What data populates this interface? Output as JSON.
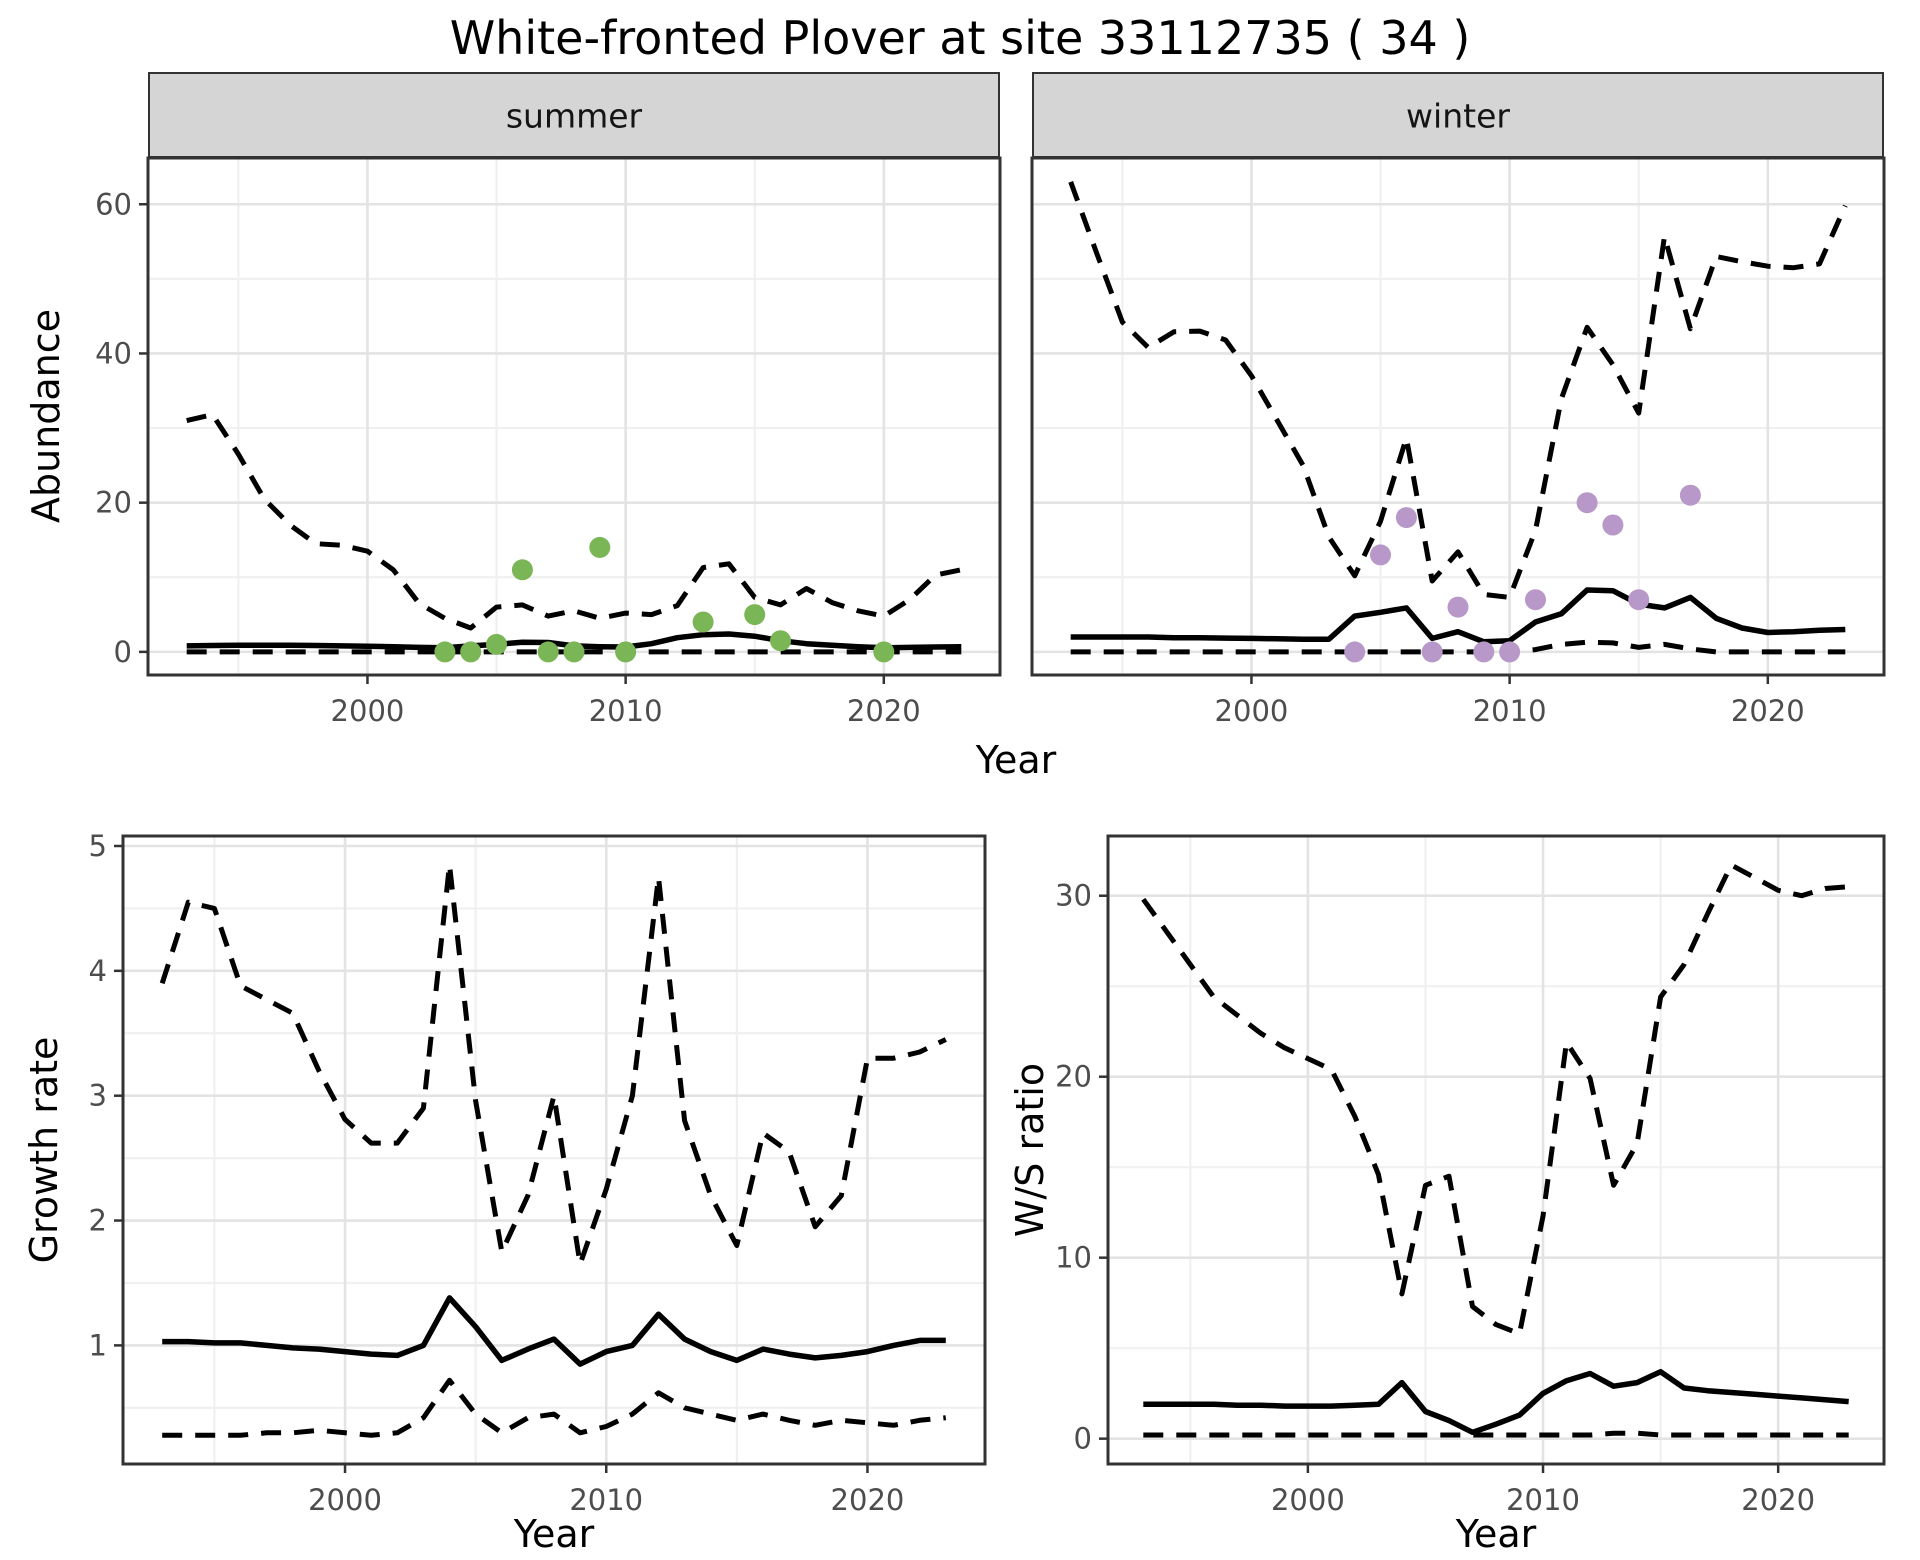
{
  "title": "White-fronted Plover at site 33112735 ( 34 )",
  "colors": {
    "summer_point": "#7ab556",
    "winter_point": "#b898c8",
    "line": "#000000",
    "panel_border": "#333333",
    "grid_major": "#e3e3e3",
    "grid_minor": "#f0f0f0",
    "strip_bg": "#d5d5d5",
    "tick_label": "#4d4d4d"
  },
  "years": [
    1993,
    1994,
    1995,
    1996,
    1997,
    1998,
    1999,
    2000,
    2001,
    2002,
    2003,
    2004,
    2005,
    2006,
    2007,
    2008,
    2009,
    2010,
    2011,
    2012,
    2013,
    2014,
    2015,
    2016,
    2017,
    2018,
    2019,
    2020,
    2021,
    2022,
    2023
  ],
  "chart_data": [
    {
      "type": "line",
      "facet": "summer",
      "ylabel": "Abundance",
      "xlabel": "Year",
      "xlim": [
        1991.5,
        2024.5
      ],
      "ylim": [
        -3.1,
        66.2
      ],
      "xticks": [
        2000,
        2010,
        2020
      ],
      "xminor": [
        1995,
        2005,
        2015
      ],
      "yticks": [
        0,
        20,
        40,
        60
      ],
      "yminor": [
        10,
        30,
        50
      ],
      "series": [
        {
          "name": "upper_ci_dashed",
          "values": [
            31,
            31.8,
            26.5,
            20.5,
            17,
            14.5,
            14.3,
            13.5,
            11,
            6.5,
            4.5,
            3.2,
            6,
            6.3,
            4.8,
            5.5,
            4.5,
            5.2,
            5,
            6.2,
            11.3,
            11.8,
            7.3,
            6.3,
            8.5,
            6.6,
            5.5,
            4.8,
            7,
            10.3,
            11
          ]
        },
        {
          "name": "median_solid",
          "values": [
            0.8,
            0.85,
            0.9,
            0.9,
            0.9,
            0.85,
            0.8,
            0.75,
            0.7,
            0.6,
            0.55,
            0.8,
            1.0,
            1.3,
            1.25,
            0.8,
            0.7,
            0.65,
            1.1,
            1.9,
            2.3,
            2.4,
            2.1,
            1.5,
            1.1,
            0.9,
            0.7,
            0.55,
            0.6,
            0.65,
            0.7
          ]
        },
        {
          "name": "lower_ci_dashed",
          "values": [
            0,
            0,
            0,
            0,
            0,
            0,
            0,
            0,
            0,
            0,
            0,
            0,
            0,
            0,
            0,
            0,
            0,
            0,
            0,
            0,
            0,
            0,
            0,
            0,
            0,
            0,
            0,
            0,
            0,
            0,
            0
          ]
        }
      ],
      "points": [
        [
          2003,
          0
        ],
        [
          2004,
          0
        ],
        [
          2005,
          1
        ],
        [
          2006,
          11
        ],
        [
          2007,
          0
        ],
        [
          2008,
          0
        ],
        [
          2009,
          14
        ],
        [
          2010,
          0
        ],
        [
          2013,
          4
        ],
        [
          2015,
          5
        ],
        [
          2016,
          1.5
        ],
        [
          2020,
          0
        ]
      ]
    },
    {
      "type": "line",
      "facet": "winter",
      "ylabel": "",
      "xlabel": "Year",
      "xlim": [
        1991.5,
        2024.5
      ],
      "ylim": [
        -3.1,
        66.2
      ],
      "xticks": [
        2000,
        2010,
        2020
      ],
      "xminor": [
        1995,
        2005,
        2015
      ],
      "yticks": [
        0,
        20,
        40,
        60
      ],
      "yminor": [
        10,
        30,
        50
      ],
      "series": [
        {
          "name": "upper_ci_dashed",
          "values": [
            63,
            53.5,
            44.2,
            40.8,
            42.9,
            43,
            41.8,
            37,
            31,
            25,
            15.4,
            10.2,
            17.5,
            28.7,
            9.5,
            13.4,
            7.7,
            7.3,
            16.3,
            33.9,
            43.5,
            38.5,
            32,
            55.7,
            43.3,
            53,
            52.3,
            51.7,
            51.5,
            52,
            59.8
          ]
        },
        {
          "name": "median_solid",
          "values": [
            2,
            2,
            2,
            2,
            1.9,
            1.9,
            1.85,
            1.8,
            1.75,
            1.7,
            1.7,
            4.8,
            5.3,
            5.9,
            1.8,
            2.7,
            1.35,
            1.5,
            4,
            5.1,
            8.3,
            8.2,
            6.4,
            5.9,
            7.3,
            4.5,
            3.2,
            2.6,
            2.7,
            2.9,
            3
          ]
        },
        {
          "name": "lower_ci_dashed",
          "values": [
            0,
            0,
            0,
            0,
            0,
            0,
            0,
            0,
            0,
            0,
            0,
            0,
            0,
            0,
            0,
            0,
            0,
            0,
            0.3,
            1,
            1.3,
            1.2,
            0.6,
            1,
            0.4,
            0,
            0,
            0,
            0,
            0,
            0
          ]
        }
      ],
      "points": [
        [
          2004,
          0
        ],
        [
          2005,
          13
        ],
        [
          2006,
          18
        ],
        [
          2007,
          0
        ],
        [
          2008,
          6
        ],
        [
          2009,
          0
        ],
        [
          2010,
          0
        ],
        [
          2011,
          7
        ],
        [
          2013,
          20
        ],
        [
          2014,
          17
        ],
        [
          2015,
          7
        ],
        [
          2017,
          21
        ]
      ]
    },
    {
      "type": "line",
      "facet": "",
      "ylabel": "Growth rate",
      "xlabel": "Year",
      "xlim": [
        1991.5,
        2024.5
      ],
      "ylim": [
        0.05,
        5.08
      ],
      "xticks": [
        2000,
        2010,
        2020
      ],
      "xminor": [
        1995,
        2005,
        2015
      ],
      "yticks": [
        1,
        2,
        3,
        4,
        5
      ],
      "yminor": [
        0.5,
        1.5,
        2.5,
        3.5,
        4.5
      ],
      "series": [
        {
          "name": "upper_ci_dashed",
          "values": [
            3.9,
            4.55,
            4.5,
            3.88,
            3.77,
            3.66,
            3.2,
            2.81,
            2.62,
            2.62,
            2.9,
            4.85,
            2.96,
            1.75,
            2.2,
            3.0,
            1.65,
            2.25,
            3.0,
            4.75,
            2.8,
            2.2,
            1.8,
            2.7,
            2.55,
            1.95,
            2.2,
            3.3,
            3.3,
            3.35,
            3.45
          ]
        },
        {
          "name": "median_solid",
          "values": [
            1.03,
            1.03,
            1.02,
            1.02,
            1.0,
            0.98,
            0.97,
            0.95,
            0.93,
            0.92,
            1.0,
            1.38,
            1.15,
            0.88,
            0.97,
            1.05,
            0.85,
            0.95,
            1.0,
            1.25,
            1.05,
            0.95,
            0.88,
            0.97,
            0.93,
            0.9,
            0.92,
            0.95,
            1.0,
            1.04,
            1.04
          ]
        },
        {
          "name": "lower_ci_dashed",
          "values": [
            0.28,
            0.28,
            0.28,
            0.28,
            0.3,
            0.3,
            0.32,
            0.3,
            0.28,
            0.3,
            0.42,
            0.72,
            0.45,
            0.3,
            0.42,
            0.45,
            0.3,
            0.35,
            0.45,
            0.62,
            0.5,
            0.45,
            0.4,
            0.45,
            0.4,
            0.36,
            0.4,
            0.38,
            0.36,
            0.4,
            0.42
          ]
        }
      ],
      "points": []
    },
    {
      "type": "line",
      "facet": "",
      "ylabel": "W/S ratio",
      "xlabel": "Year",
      "xlim": [
        1991.5,
        2024.5
      ],
      "ylim": [
        -1.4,
        33.3
      ],
      "xticks": [
        2000,
        2010,
        2020
      ],
      "xminor": [
        1995,
        2005,
        2015
      ],
      "yticks": [
        0,
        10,
        20,
        30
      ],
      "yminor": [
        5,
        15,
        25
      ],
      "series": [
        {
          "name": "upper_ci_dashed",
          "values": [
            29.8,
            28,
            26.2,
            24.4,
            23.4,
            22.4,
            21.6,
            21,
            20.4,
            17.8,
            14.6,
            8,
            14,
            14.5,
            7.3,
            6.3,
            5.8,
            12.3,
            21.9,
            19.9,
            14,
            16.3,
            24.4,
            26.2,
            29,
            31.7,
            31,
            30.3,
            30,
            30.4,
            30.5
          ]
        },
        {
          "name": "median_solid",
          "values": [
            1.9,
            1.9,
            1.9,
            1.9,
            1.85,
            1.85,
            1.8,
            1.8,
            1.8,
            1.85,
            1.9,
            3.1,
            1.5,
            1.0,
            0.35,
            0.8,
            1.3,
            2.5,
            3.2,
            3.6,
            2.9,
            3.1,
            3.7,
            2.8,
            2.65,
            2.55,
            2.45,
            2.35,
            2.25,
            2.15,
            2.05
          ]
        },
        {
          "name": "lower_ci_dashed",
          "values": [
            0.2,
            0.2,
            0.2,
            0.2,
            0.2,
            0.2,
            0.2,
            0.2,
            0.2,
            0.2,
            0.2,
            0.2,
            0.2,
            0.2,
            0.2,
            0.2,
            0.2,
            0.2,
            0.2,
            0.2,
            0.3,
            0.3,
            0.2,
            0.2,
            0.2,
            0.2,
            0.2,
            0.2,
            0.2,
            0.2,
            0.2
          ]
        }
      ],
      "points": []
    }
  ]
}
